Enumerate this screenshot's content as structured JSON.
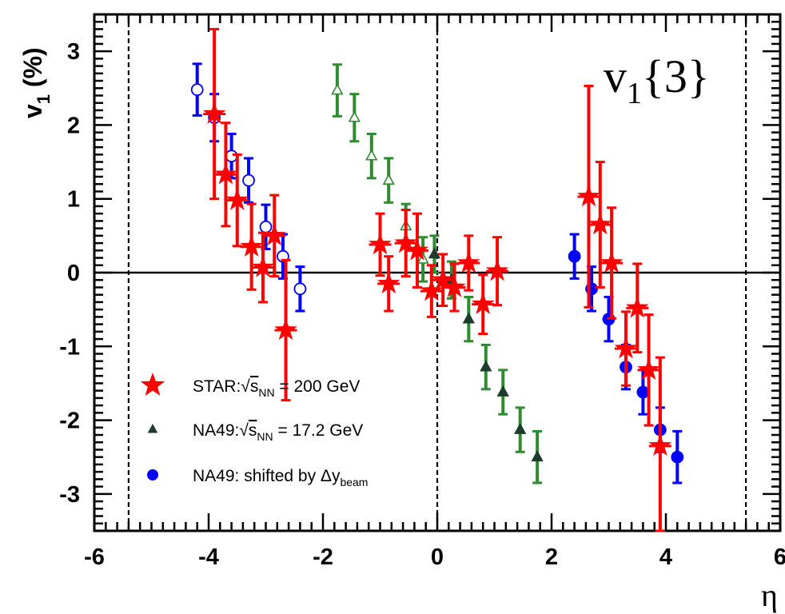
{
  "chart_data": {
    "type": "scatter",
    "title": "",
    "annotation": {
      "text": "v",
      "sub": "1",
      "suffix": "{3}"
    },
    "xlabel": "η",
    "ylabel": {
      "main": "v",
      "sub": "1",
      "suffix": " (%)"
    },
    "xlim": [
      -6,
      6
    ],
    "ylim": [
      -3.5,
      3.5
    ],
    "xticks": [
      -6,
      -4,
      -2,
      0,
      2,
      4,
      6
    ],
    "yticks": [
      -3,
      -2,
      -1,
      0,
      1,
      2,
      3
    ],
    "reference_lines": {
      "horizontal": [
        0
      ],
      "vertical_dashed": [
        -5.4,
        0,
        5.4
      ]
    },
    "legend": {
      "placement": "bottom-left",
      "entries": [
        {
          "series": "star",
          "prefix": "STAR:",
          "sqrt": "s",
          "sqrt_sub": "NN",
          "suffix": " = 200 GeV",
          "marker": "star",
          "color": "#ff0000"
        },
        {
          "series": "na49",
          "prefix": "NA49:",
          "sqrt": "s",
          "sqrt_sub": "NN",
          "suffix": " = 17.2 GeV",
          "marker": "triangle",
          "color": "#1c3d2c"
        },
        {
          "series": "na49_shifted",
          "prefix": "NA49: shifted by ",
          "delta": "Δy",
          "delta_sub": "beam",
          "marker": "circle",
          "color": "#0000ff"
        }
      ]
    },
    "series": {
      "star": {
        "color": "#ff0000",
        "marker": "star",
        "points": [
          {
            "x": -3.9,
            "y": 2.15,
            "err": 1.15
          },
          {
            "x": -3.7,
            "y": 1.33,
            "err": 0.7
          },
          {
            "x": -3.5,
            "y": 0.98,
            "err": 0.62
          },
          {
            "x": -3.25,
            "y": 0.35,
            "err": 0.58
          },
          {
            "x": -3.05,
            "y": 0.07,
            "err": 0.47
          },
          {
            "x": -2.85,
            "y": 0.5,
            "err": 0.55
          },
          {
            "x": -2.65,
            "y": -0.78,
            "err": 0.95
          },
          {
            "x": -1.0,
            "y": 0.38,
            "err": 0.42
          },
          {
            "x": -0.85,
            "y": -0.15,
            "err": 0.37
          },
          {
            "x": -0.55,
            "y": 0.4,
            "err": 0.45
          },
          {
            "x": -0.35,
            "y": 0.3,
            "err": 0.5
          },
          {
            "x": -0.1,
            "y": -0.25,
            "err": 0.35
          },
          {
            "x": 0.1,
            "y": -0.1,
            "err": 0.35
          },
          {
            "x": 0.3,
            "y": -0.2,
            "err": 0.32
          },
          {
            "x": 0.55,
            "y": 0.13,
            "err": 0.37
          },
          {
            "x": 0.8,
            "y": -0.43,
            "err": 0.4
          },
          {
            "x": 1.05,
            "y": 0.02,
            "err": 0.46
          },
          {
            "x": 2.65,
            "y": 1.03,
            "err": 1.5
          },
          {
            "x": 2.85,
            "y": 0.65,
            "err": 0.85
          },
          {
            "x": 3.05,
            "y": 0.13,
            "err": 0.75
          },
          {
            "x": 3.3,
            "y": -1.03,
            "err": 0.5
          },
          {
            "x": 3.5,
            "y": -0.48,
            "err": 0.6
          },
          {
            "x": 3.7,
            "y": -1.32,
            "err": 0.75
          },
          {
            "x": 3.9,
            "y": -2.35,
            "err": 1.2
          }
        ]
      },
      "na49": {
        "color": "#2e8b2e",
        "marker": "triangle",
        "points": [
          {
            "x": -1.75,
            "y": 2.47,
            "err": 0.35,
            "open": true
          },
          {
            "x": -1.45,
            "y": 2.1,
            "err": 0.32,
            "open": true
          },
          {
            "x": -1.15,
            "y": 1.58,
            "err": 0.3,
            "open": true
          },
          {
            "x": -0.85,
            "y": 1.25,
            "err": 0.3,
            "open": true
          },
          {
            "x": -0.55,
            "y": 0.63,
            "err": 0.3,
            "open": true
          },
          {
            "x": -0.25,
            "y": 0.18,
            "err": 0.3,
            "open": true
          },
          {
            "x": -0.05,
            "y": 0.25,
            "err": 0.25,
            "open": false
          },
          {
            "x": 0.25,
            "y": -0.1,
            "err": 0.25,
            "open": false
          },
          {
            "x": 0.55,
            "y": -0.63,
            "err": 0.3,
            "open": false
          },
          {
            "x": 0.85,
            "y": -1.28,
            "err": 0.3,
            "open": false
          },
          {
            "x": 1.15,
            "y": -1.62,
            "err": 0.3,
            "open": false
          },
          {
            "x": 1.45,
            "y": -2.13,
            "err": 0.3,
            "open": false
          },
          {
            "x": 1.75,
            "y": -2.5,
            "err": 0.35,
            "open": false
          }
        ]
      },
      "na49_shifted": {
        "color": "#0000ff",
        "marker": "circle",
        "points": [
          {
            "x": -4.2,
            "y": 2.48,
            "err": 0.35,
            "open": true
          },
          {
            "x": -3.9,
            "y": 2.1,
            "err": 0.32,
            "open": true
          },
          {
            "x": -3.6,
            "y": 1.58,
            "err": 0.3,
            "open": true
          },
          {
            "x": -3.3,
            "y": 1.25,
            "err": 0.3,
            "open": true
          },
          {
            "x": -3.0,
            "y": 0.62,
            "err": 0.3,
            "open": true
          },
          {
            "x": -2.7,
            "y": 0.22,
            "err": 0.3,
            "open": true
          },
          {
            "x": -2.4,
            "y": -0.22,
            "err": 0.3,
            "open": true
          },
          {
            "x": 2.4,
            "y": 0.22,
            "err": 0.3,
            "open": false
          },
          {
            "x": 2.7,
            "y": -0.22,
            "err": 0.3,
            "open": false
          },
          {
            "x": 3.0,
            "y": -0.63,
            "err": 0.3,
            "open": false
          },
          {
            "x": 3.3,
            "y": -1.28,
            "err": 0.3,
            "open": false
          },
          {
            "x": 3.6,
            "y": -1.62,
            "err": 0.3,
            "open": false
          },
          {
            "x": 3.9,
            "y": -2.13,
            "err": 0.3,
            "open": false
          },
          {
            "x": 4.2,
            "y": -2.5,
            "err": 0.35,
            "open": false
          }
        ]
      }
    }
  }
}
